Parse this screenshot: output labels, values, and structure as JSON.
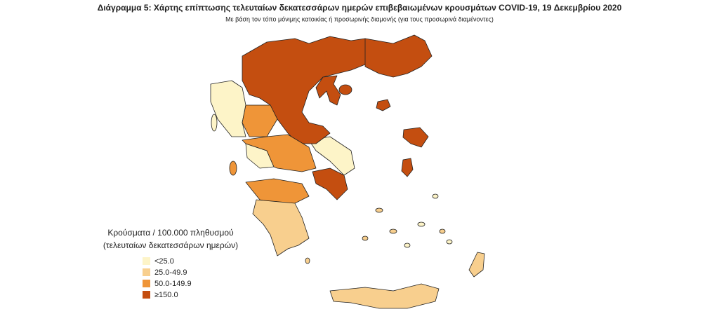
{
  "title": "Διάγραμμα 5: Χάρτης επίπτωσης τελευταίων δεκατεσσάρων ημερών επιβεβαιωμένων κρουσμάτων COVID-19, 19 Δεκεμβρίου 2020",
  "subtitle": "Με βάση τον τόπο μόνιμης κατοικίας ή προσωρινής διαμονής (για τους προσωρινά διαμένοντες)",
  "legend": {
    "title": [
      "Κρούσματα / 100.000 πληθυσμού",
      "(τελευταίων δεκατεσσάρων ημερών)"
    ],
    "items": [
      {
        "label": "<25.0",
        "color": "#fdf4c8"
      },
      {
        "label": "25.0-49.9",
        "color": "#f8cf8e"
      },
      {
        "label": "50.0-149.9",
        "color": "#ef9538"
      },
      {
        "label": "≥150.0",
        "color": "#c44e10"
      }
    ]
  }
}
